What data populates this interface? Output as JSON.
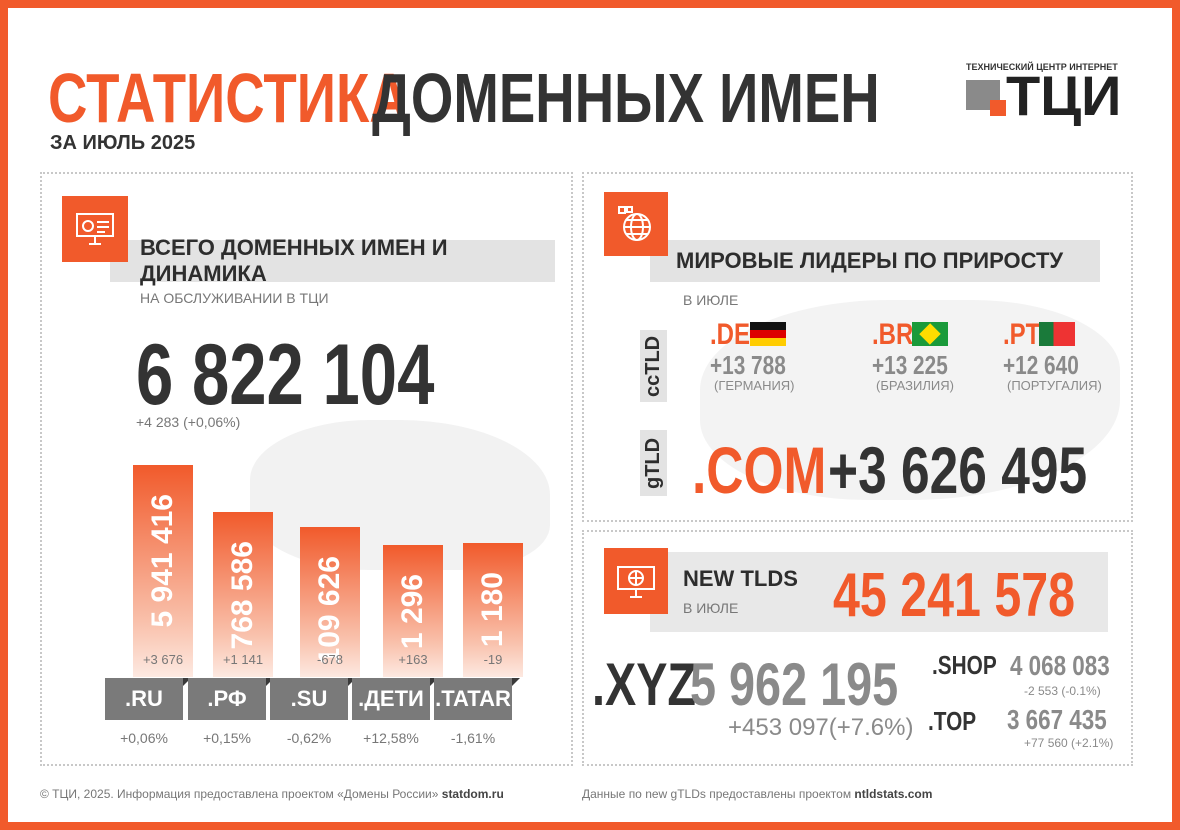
{
  "header": {
    "title_accent": "СТАТИСТИКА",
    "title_rest": "ДОМЕННЫХ ИМЕН",
    "period": "ЗА ИЮЛЬ 2025"
  },
  "logo": {
    "caption": "ТЕХНИЧЕСКИЙ ЦЕНТР ИНТЕРНЕТ",
    "mark": "ТЦИ"
  },
  "colors": {
    "accent": "#f15a2b",
    "dark": "#333333",
    "gray": "#8a8a8a"
  },
  "total": {
    "heading": "ВСЕГО ДОМЕННЫХ ИМЕН И ДИНАМИКА",
    "sub": "НА ОБСЛУЖИВАНИИ В ТЦИ",
    "value": "6 822 104",
    "change": "+4 283 (+0,06%)",
    "icon": "monitor-dashboard-icon"
  },
  "chart_data": {
    "type": "bar",
    "categories": [
      ".RU",
      ".РФ",
      ".SU",
      ".ДЕТИ",
      ".TATAR"
    ],
    "values": [
      5941416,
      768586,
      109626,
      1296,
      1180
    ],
    "labels": [
      "5 941 416",
      "768 586",
      "109 626",
      "1 296",
      "1 180"
    ],
    "deltas": [
      "+3 676",
      "+1 141",
      "-678",
      "+163",
      "-19"
    ],
    "percent": [
      "+0,06%",
      "+0,15%",
      "-0,62%",
      "+12,58%",
      "-1,61%"
    ]
  },
  "leaders": {
    "heading": "МИРОВЫЕ ЛИДЕРЫ ПО ПРИРОСТУ",
    "sub": "В ИЮЛЕ",
    "icon": "globe-icon",
    "cctld_label": "ccTLD",
    "gtld_label": "gTLD",
    "cctld": [
      {
        "tld": ".DE",
        "value": "+13 788",
        "country": "(ГЕРМАНИЯ)",
        "flag": "germany-flag"
      },
      {
        "tld": ".BR",
        "value": "+13 225",
        "country": "(БРАЗИЛИЯ)",
        "flag": "brazil-flag"
      },
      {
        "tld": ".PT",
        "value": "+12 640",
        "country": "(ПОРТУГАЛИЯ)",
        "flag": "portugal-flag"
      }
    ],
    "gtld": {
      "tld": ".COM",
      "value": "+3 626 495"
    }
  },
  "newtlds": {
    "heading": "NEW TLDS",
    "sub": "В ИЮЛЕ",
    "value": "45 241 578",
    "icon": "globe-monitor-icon",
    "xyz": {
      "tld": ".XYZ",
      "value": "5 962 195",
      "change": "+453 097(+7.6%)"
    },
    "shop": {
      "tld": ".SHOP",
      "value": "4 068 083",
      "change": "-2 553 (-0.1%)"
    },
    "top": {
      "tld": ".TOP",
      "value": "3 667 435",
      "change": "+77 560 (+2.1%)"
    }
  },
  "footer": {
    "left": "© ТЦИ, 2025.  Информация предоставлена проектом «Домены России»",
    "left_link": "statdom.ru",
    "right": "Данные по new gTLDs предоставлены проектом",
    "right_link": "ntldstats.com"
  }
}
